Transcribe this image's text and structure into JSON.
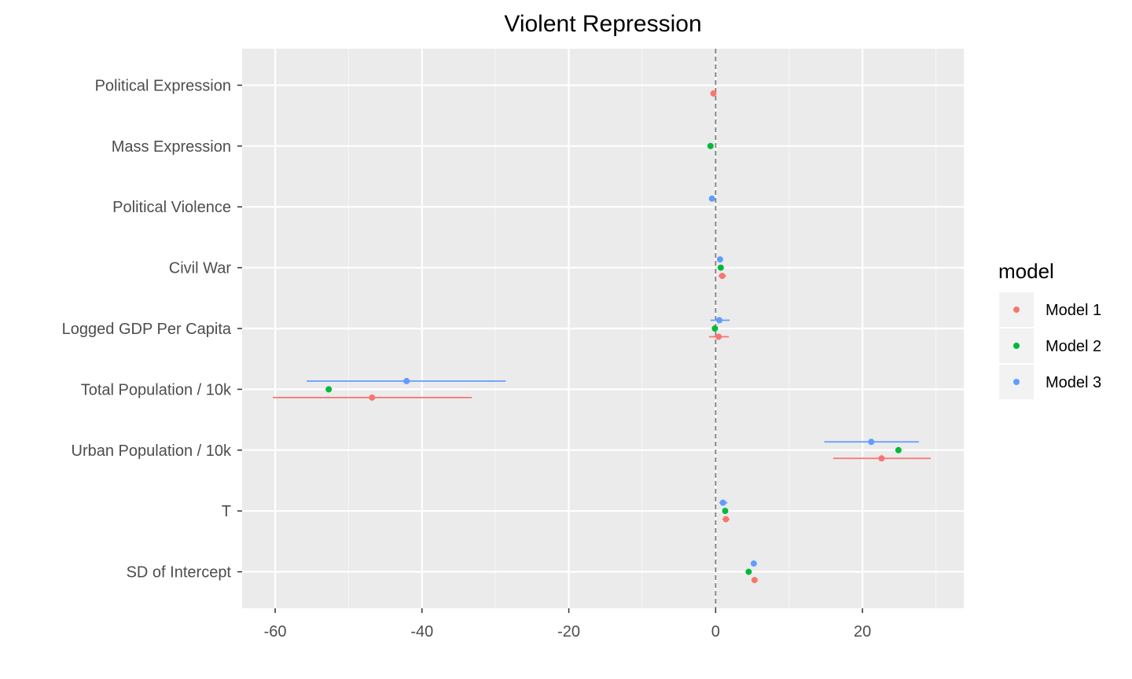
{
  "chart_data": {
    "type": "scatter",
    "title": "Violent Repression",
    "xlabel": "",
    "ylabel": "",
    "xlim": [
      -64.5,
      33.8
    ],
    "x_ticks": [
      -60,
      -40,
      -20,
      0,
      20
    ],
    "x_tick_labels": [
      "-60",
      "-40",
      "-20",
      "0",
      "20"
    ],
    "categories": [
      "Political Expression",
      "Mass Expression",
      "Political Violence",
      "Civil War",
      "Logged GDP Per Capita",
      "Total Population / 10k",
      "Urban Population / 10k",
      "T",
      "SD of Intercept"
    ],
    "reference_line": {
      "x": 0,
      "style": "dashed"
    },
    "grid": true,
    "legend": {
      "title": "model",
      "position": "right"
    },
    "series": [
      {
        "name": "Model 1",
        "color": "#F8766D",
        "points": [
          {
            "category": "Political Expression",
            "estimate": -0.3,
            "low": -0.5,
            "high": -0.1
          },
          {
            "category": "Civil War",
            "estimate": 0.9,
            "low": 0.4,
            "high": 1.4
          },
          {
            "category": "Logged GDP Per Capita",
            "estimate": 0.4,
            "low": -0.9,
            "high": 1.8
          },
          {
            "category": "Total Population / 10k",
            "estimate": -46.8,
            "low": -60.3,
            "high": -33.2
          },
          {
            "category": "Urban Population / 10k",
            "estimate": 22.6,
            "low": 16.0,
            "high": 29.3
          },
          {
            "category": "T",
            "estimate": 1.4,
            "low": 0.9,
            "high": 1.9
          },
          {
            "category": "SD of Intercept",
            "estimate": 5.3,
            "low": 5.0,
            "high": 5.6
          }
        ]
      },
      {
        "name": "Model 2",
        "color": "#00BA38",
        "points": [
          {
            "category": "Mass Expression",
            "estimate": -0.7,
            "low": -0.9,
            "high": -0.5
          },
          {
            "category": "Civil War",
            "estimate": 0.7,
            "low": 0.4,
            "high": 1.0
          },
          {
            "category": "Logged GDP Per Capita",
            "estimate": -0.1,
            "low": -0.4,
            "high": 0.2
          },
          {
            "category": "Total Population / 10k",
            "estimate": -52.7,
            "low": -53.0,
            "high": -52.4
          },
          {
            "category": "Urban Population / 10k",
            "estimate": 24.9,
            "low": 24.6,
            "high": 25.2
          },
          {
            "category": "T",
            "estimate": 1.3,
            "low": 1.1,
            "high": 1.5
          },
          {
            "category": "SD of Intercept",
            "estimate": 4.5,
            "low": 4.2,
            "high": 4.8
          }
        ]
      },
      {
        "name": "Model 3",
        "color": "#619CFF",
        "points": [
          {
            "category": "Political Violence",
            "estimate": -0.5,
            "low": -0.8,
            "high": -0.2
          },
          {
            "category": "Civil War",
            "estimate": 0.6,
            "low": 0.2,
            "high": 1.0
          },
          {
            "category": "Logged GDP Per Capita",
            "estimate": 0.5,
            "low": -0.7,
            "high": 1.9
          },
          {
            "category": "Total Population / 10k",
            "estimate": -42.1,
            "low": -55.7,
            "high": -28.6
          },
          {
            "category": "Urban Population / 10k",
            "estimate": 21.2,
            "low": 14.8,
            "high": 27.7
          },
          {
            "category": "T",
            "estimate": 1.0,
            "low": 0.5,
            "high": 1.6
          },
          {
            "category": "SD of Intercept",
            "estimate": 5.2,
            "low": 4.9,
            "high": 5.5
          }
        ]
      }
    ]
  }
}
